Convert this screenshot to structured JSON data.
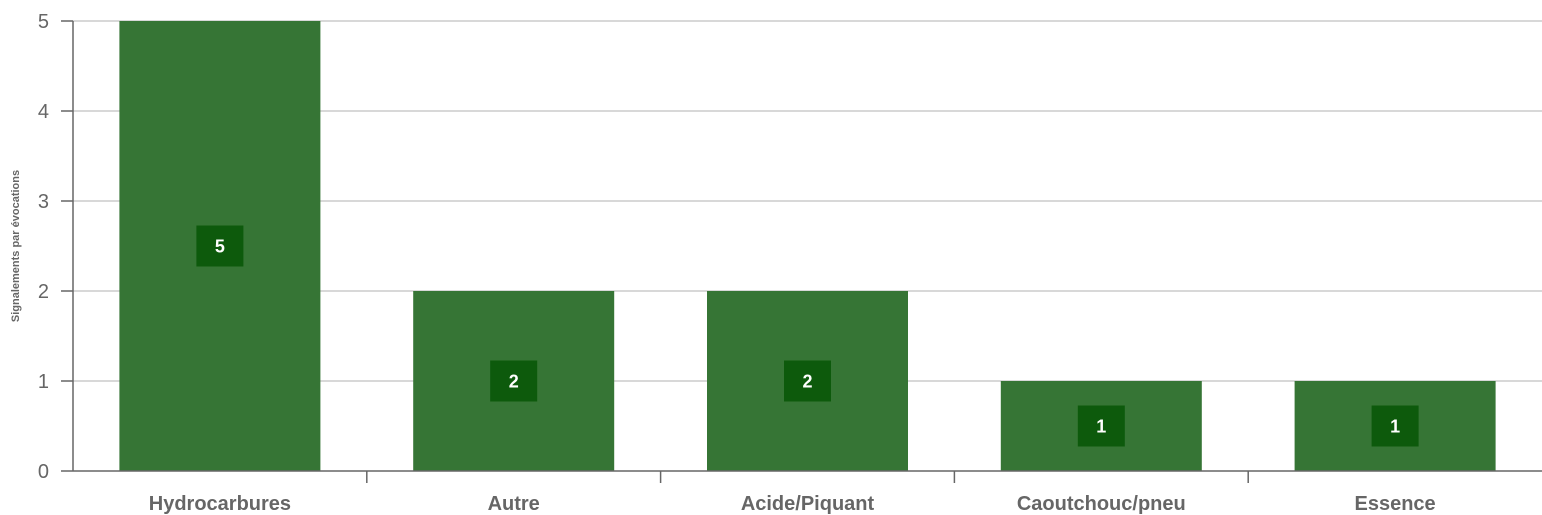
{
  "chart_data": {
    "type": "bar",
    "categories": [
      "Hydrocarbures",
      "Autre",
      "Acide/Piquant",
      "Caoutchouc/pneu",
      "Essence"
    ],
    "values": [
      5,
      2,
      2,
      1,
      1
    ],
    "xlabel": "",
    "ylabel": "Signalements par évocations",
    "ylim": [
      0,
      5
    ],
    "yticks": [
      0,
      1,
      2,
      3,
      4,
      5
    ],
    "grid": true,
    "legend": "none",
    "colors": {
      "bar": "#367535",
      "label_box": "#0d5a0c",
      "grid": "#cccccc",
      "axis": "#666666",
      "text": "#666666"
    }
  }
}
